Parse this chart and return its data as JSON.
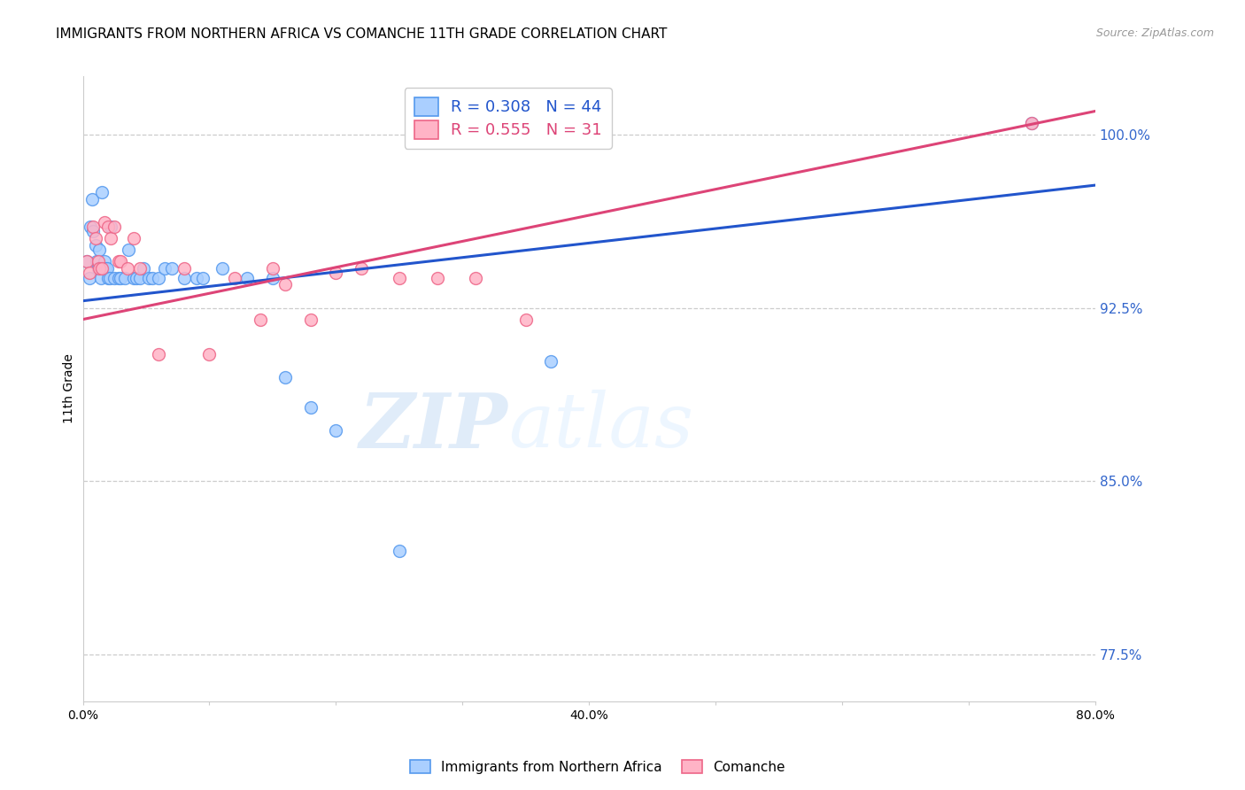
{
  "title": "IMMIGRANTS FROM NORTHERN AFRICA VS COMANCHE 11TH GRADE CORRELATION CHART",
  "source_text": "Source: ZipAtlas.com",
  "ylabel": "11th Grade",
  "xlim": [
    0.0,
    0.8
  ],
  "ylim": [
    0.755,
    1.025
  ],
  "ytick_positions": [
    0.775,
    0.85,
    0.925,
    1.0
  ],
  "ytick_labels": [
    "77.5%",
    "85.0%",
    "92.5%",
    "100.0%"
  ],
  "xtick_positions": [
    0.0,
    0.1,
    0.2,
    0.3,
    0.4,
    0.5,
    0.6,
    0.7,
    0.8
  ],
  "xtick_labels": [
    "0.0%",
    "",
    "",
    "",
    "40.0%",
    "",
    "",
    "",
    "80.0%"
  ],
  "legend_entry1": "R = 0.308   N = 44",
  "legend_entry2": "R = 0.555   N = 31",
  "blue_color": "#aacfff",
  "pink_color": "#ffb3c6",
  "blue_edge_color": "#5599ee",
  "pink_edge_color": "#ee6688",
  "blue_line_color": "#2255cc",
  "pink_line_color": "#dd4477",
  "watermark_zip": "ZIP",
  "watermark_atlas": "atlas",
  "blue_line_x": [
    0.0,
    0.8
  ],
  "blue_line_y": [
    0.928,
    0.978
  ],
  "pink_line_x": [
    0.0,
    0.8
  ],
  "pink_line_y": [
    0.92,
    1.01
  ],
  "blue_scatter_x": [
    0.003,
    0.005,
    0.006,
    0.007,
    0.008,
    0.01,
    0.011,
    0.012,
    0.013,
    0.014,
    0.015,
    0.016,
    0.017,
    0.018,
    0.019,
    0.02,
    0.021,
    0.022,
    0.025,
    0.028,
    0.03,
    0.033,
    0.036,
    0.04,
    0.042,
    0.045,
    0.048,
    0.052,
    0.055,
    0.06,
    0.065,
    0.07,
    0.08,
    0.09,
    0.095,
    0.11,
    0.13,
    0.15,
    0.16,
    0.18,
    0.2,
    0.25,
    0.37,
    0.75
  ],
  "blue_scatter_y": [
    0.945,
    0.938,
    0.96,
    0.972,
    0.958,
    0.952,
    0.945,
    0.942,
    0.95,
    0.938,
    0.975,
    0.942,
    0.945,
    0.942,
    0.942,
    0.938,
    0.938,
    0.96,
    0.938,
    0.938,
    0.938,
    0.938,
    0.95,
    0.938,
    0.938,
    0.938,
    0.942,
    0.938,
    0.938,
    0.938,
    0.942,
    0.942,
    0.938,
    0.938,
    0.938,
    0.942,
    0.938,
    0.938,
    0.895,
    0.882,
    0.872,
    0.82,
    0.902,
    1.005
  ],
  "pink_scatter_x": [
    0.003,
    0.005,
    0.008,
    0.01,
    0.012,
    0.013,
    0.015,
    0.017,
    0.02,
    0.022,
    0.025,
    0.028,
    0.03,
    0.035,
    0.04,
    0.045,
    0.06,
    0.08,
    0.1,
    0.12,
    0.14,
    0.15,
    0.16,
    0.18,
    0.2,
    0.22,
    0.25,
    0.28,
    0.31,
    0.35,
    0.75
  ],
  "pink_scatter_y": [
    0.945,
    0.94,
    0.96,
    0.955,
    0.945,
    0.942,
    0.942,
    0.962,
    0.96,
    0.955,
    0.96,
    0.945,
    0.945,
    0.942,
    0.955,
    0.942,
    0.905,
    0.942,
    0.905,
    0.938,
    0.92,
    0.942,
    0.935,
    0.92,
    0.94,
    0.942,
    0.938,
    0.938,
    0.938,
    0.92,
    1.005
  ],
  "title_fontsize": 11,
  "tick_fontsize": 10,
  "legend_fontsize": 13,
  "marker_size": 100
}
